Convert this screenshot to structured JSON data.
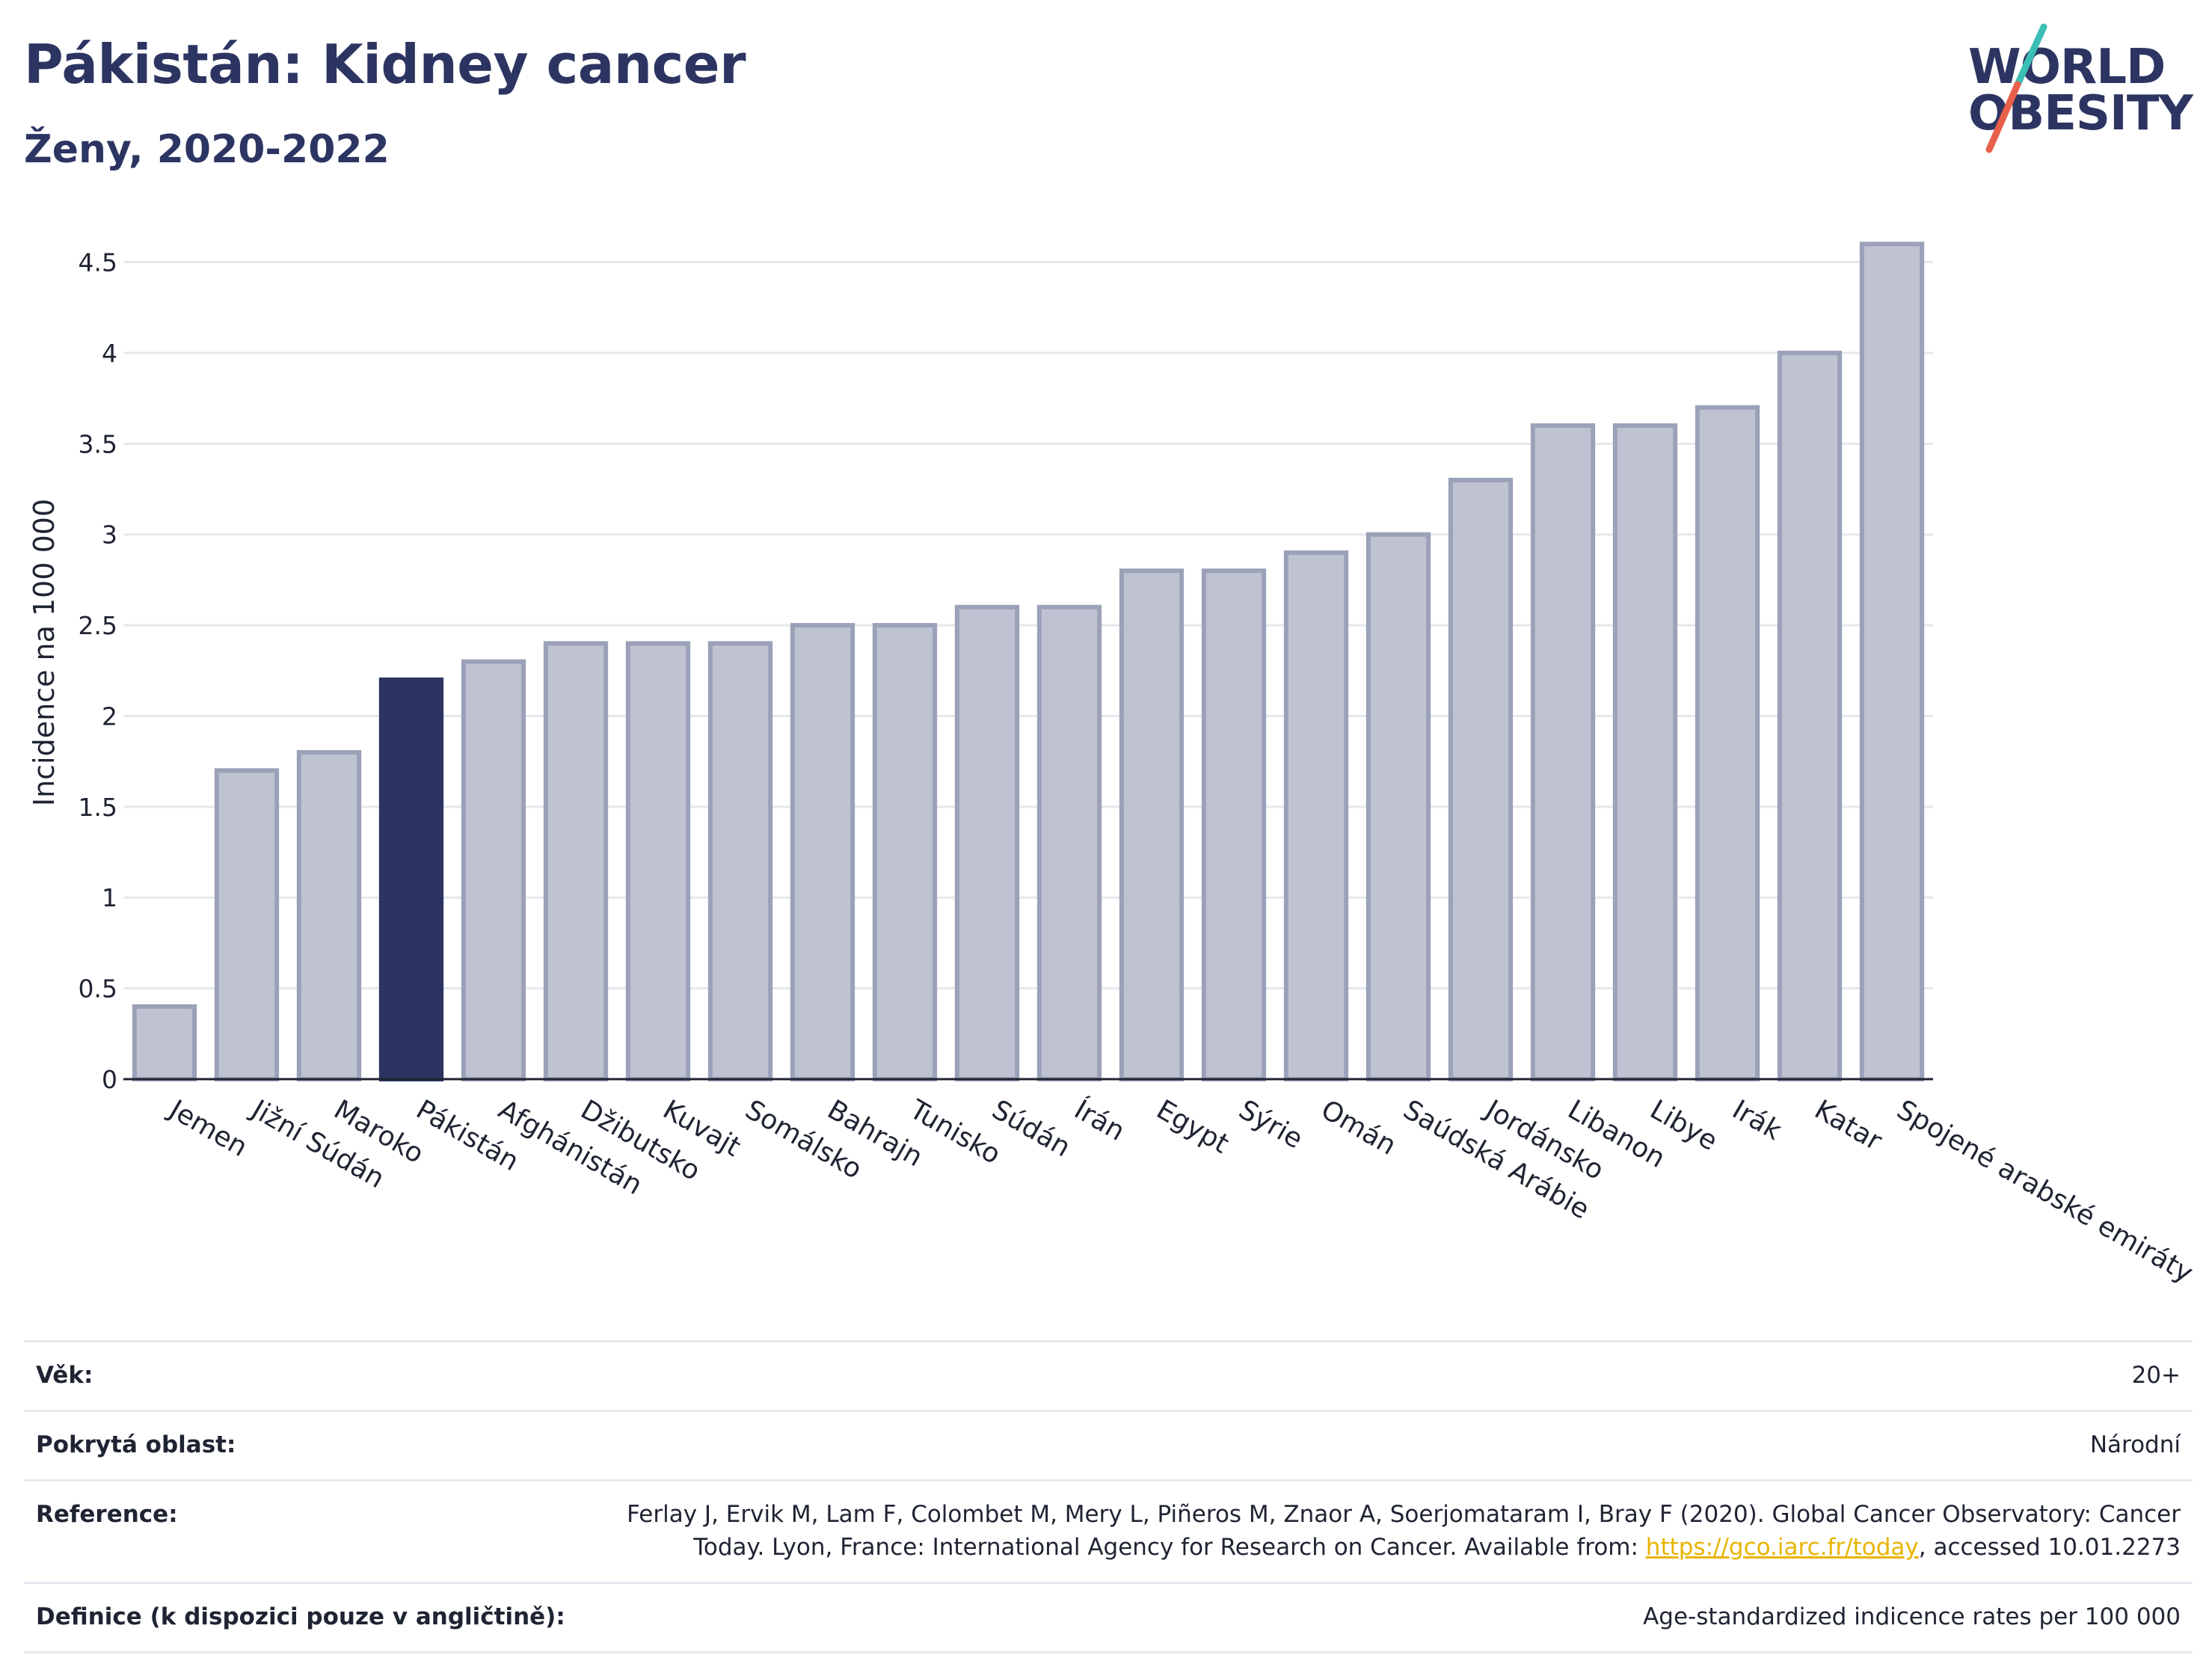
{
  "header": {
    "title": "Pákistán: Kidney cancer",
    "subtitle": "Ženy, 2020-2022"
  },
  "logo": {
    "line1": "WORLD",
    "line2": "OBESITY",
    "accent_colors": [
      "#3bbfb5",
      "#e8604c"
    ]
  },
  "colors": {
    "highlight_bar": "#2c3562",
    "other_bar": "#bfc3d1",
    "other_bar_border": "#9ba1b8",
    "grid": "#e6e8ef",
    "link": "#e8b400"
  },
  "chart_data": {
    "type": "bar",
    "title": "Pákistán: Kidney cancer",
    "subtitle": "Ženy, 2020-2022",
    "xlabel": "",
    "ylabel": "Incidence na 100 000",
    "ylim": [
      0,
      4.7
    ],
    "yticks": [
      0,
      0.5,
      1,
      1.5,
      2,
      2.5,
      3,
      3.5,
      4,
      4.5
    ],
    "ytick_labels": [
      "0",
      "0.5",
      "1",
      "1.5",
      "2",
      "2.5",
      "3",
      "3.5",
      "4",
      "4.5"
    ],
    "grid": true,
    "highlight": "Pákistán",
    "categories": [
      "Jemen",
      "Jižní Súdán",
      "Maroko",
      "Pákistán",
      "Afghánistán",
      "Džibutsko",
      "Kuvajt",
      "Somálsko",
      "Bahrajn",
      "Tunisko",
      "Súdán",
      "Írán",
      "Egypt",
      "Sýrie",
      "Omán",
      "Saúdská Arábie",
      "Jordánsko",
      "Libanon",
      "Libye",
      "Irák",
      "Katar",
      "Spojené arabské emiráty"
    ],
    "values": [
      0.4,
      1.7,
      1.8,
      2.2,
      2.3,
      2.4,
      2.4,
      2.4,
      2.5,
      2.5,
      2.6,
      2.6,
      2.8,
      2.8,
      2.9,
      3.0,
      3.3,
      3.6,
      3.6,
      3.7,
      4.0,
      4.6
    ]
  },
  "meta": {
    "age_label": "Věk:",
    "age_value": "20+",
    "coverage_label": "Pokrytá oblast:",
    "coverage_value": "Národní",
    "reference_label": "Reference:",
    "reference_text_before": "Ferlay J, Ervik M, Lam F, Colombet M, Mery L, Piñeros M, Znaor A, Soerjomataram I, Bray F (2020). Global Cancer Observatory: Cancer Today. Lyon, France: International Agency for Research on Cancer. Available from: ",
    "reference_link": "https://gco.iarc.fr/today",
    "reference_text_after": ", accessed 10.01.2273",
    "definition_label": "Definice (k dispozici pouze v angličtině):",
    "definition_value": "Age-standardized indicence rates per 100 000"
  }
}
